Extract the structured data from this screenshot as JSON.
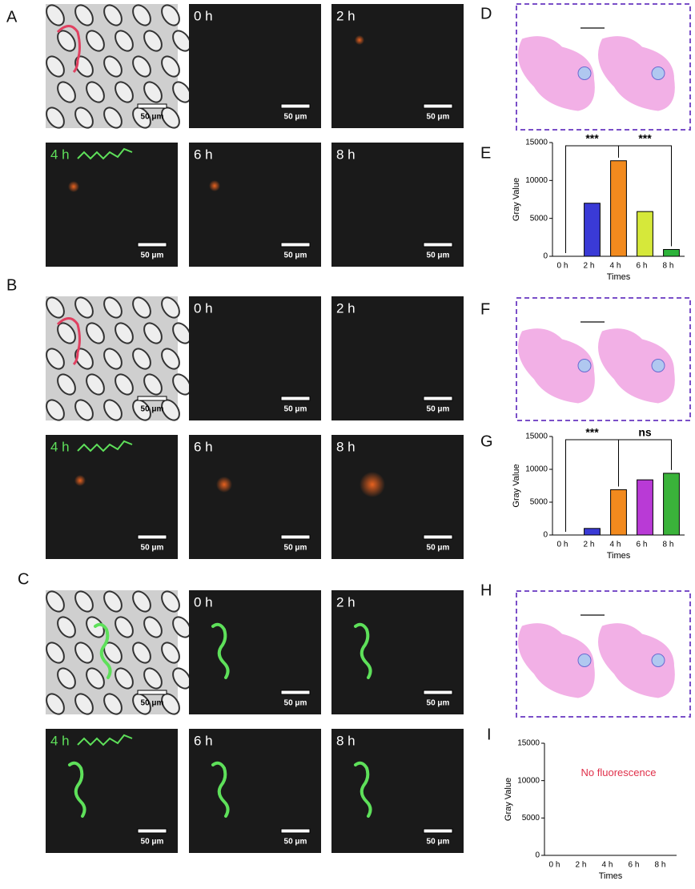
{
  "panel_labels": [
    "A",
    "B",
    "C",
    "D",
    "E",
    "F",
    "G",
    "H",
    "I"
  ],
  "microscopy": {
    "times": [
      "0 h",
      "2 h",
      "4 h",
      "6 h",
      "8 h"
    ],
    "scale_bar": "50 μm"
  },
  "chart_data": [
    {
      "type": "bar",
      "ylabel": "Gray Value",
      "xlabel": "Times",
      "categories": [
        "0 h",
        "2 h",
        "4 h",
        "6 h",
        "8 h"
      ],
      "values": [
        0,
        7000,
        12600,
        5900,
        900
      ],
      "colors": [
        "#3a3ad6",
        "#3a3ad6",
        "#f28a1e",
        "#d6e83a",
        "#2db33a"
      ],
      "ylim": [
        0,
        15000
      ],
      "yticks": [
        0,
        5000,
        10000,
        15000
      ],
      "significance": [
        "***",
        "***"
      ]
    },
    {
      "type": "bar",
      "ylabel": "Gray Value",
      "xlabel": "Times",
      "categories": [
        "0 h",
        "2 h",
        "4 h",
        "6 h",
        "8 h"
      ],
      "values": [
        0,
        1000,
        6900,
        8400,
        9400
      ],
      "colors": [
        "#3a3ad6",
        "#3a3ad6",
        "#f28a1e",
        "#b93ad6",
        "#3ab33a"
      ],
      "ylim": [
        0,
        15000
      ],
      "yticks": [
        0,
        5000,
        10000,
        15000
      ],
      "significance": [
        "***",
        "ns"
      ]
    },
    {
      "type": "bar",
      "ylabel": "Gray Value",
      "xlabel": "Times",
      "categories": [
        "0 h",
        "2 h",
        "4 h",
        "6 h",
        "8 h"
      ],
      "values": [
        0,
        0,
        0,
        0,
        0
      ],
      "colors": [
        "#999999",
        "#999999",
        "#999999",
        "#999999",
        "#999999"
      ],
      "ylim": [
        0,
        15000
      ],
      "yticks": [
        0,
        5000,
        10000,
        15000
      ],
      "annotation": "No fluorescence"
    }
  ]
}
